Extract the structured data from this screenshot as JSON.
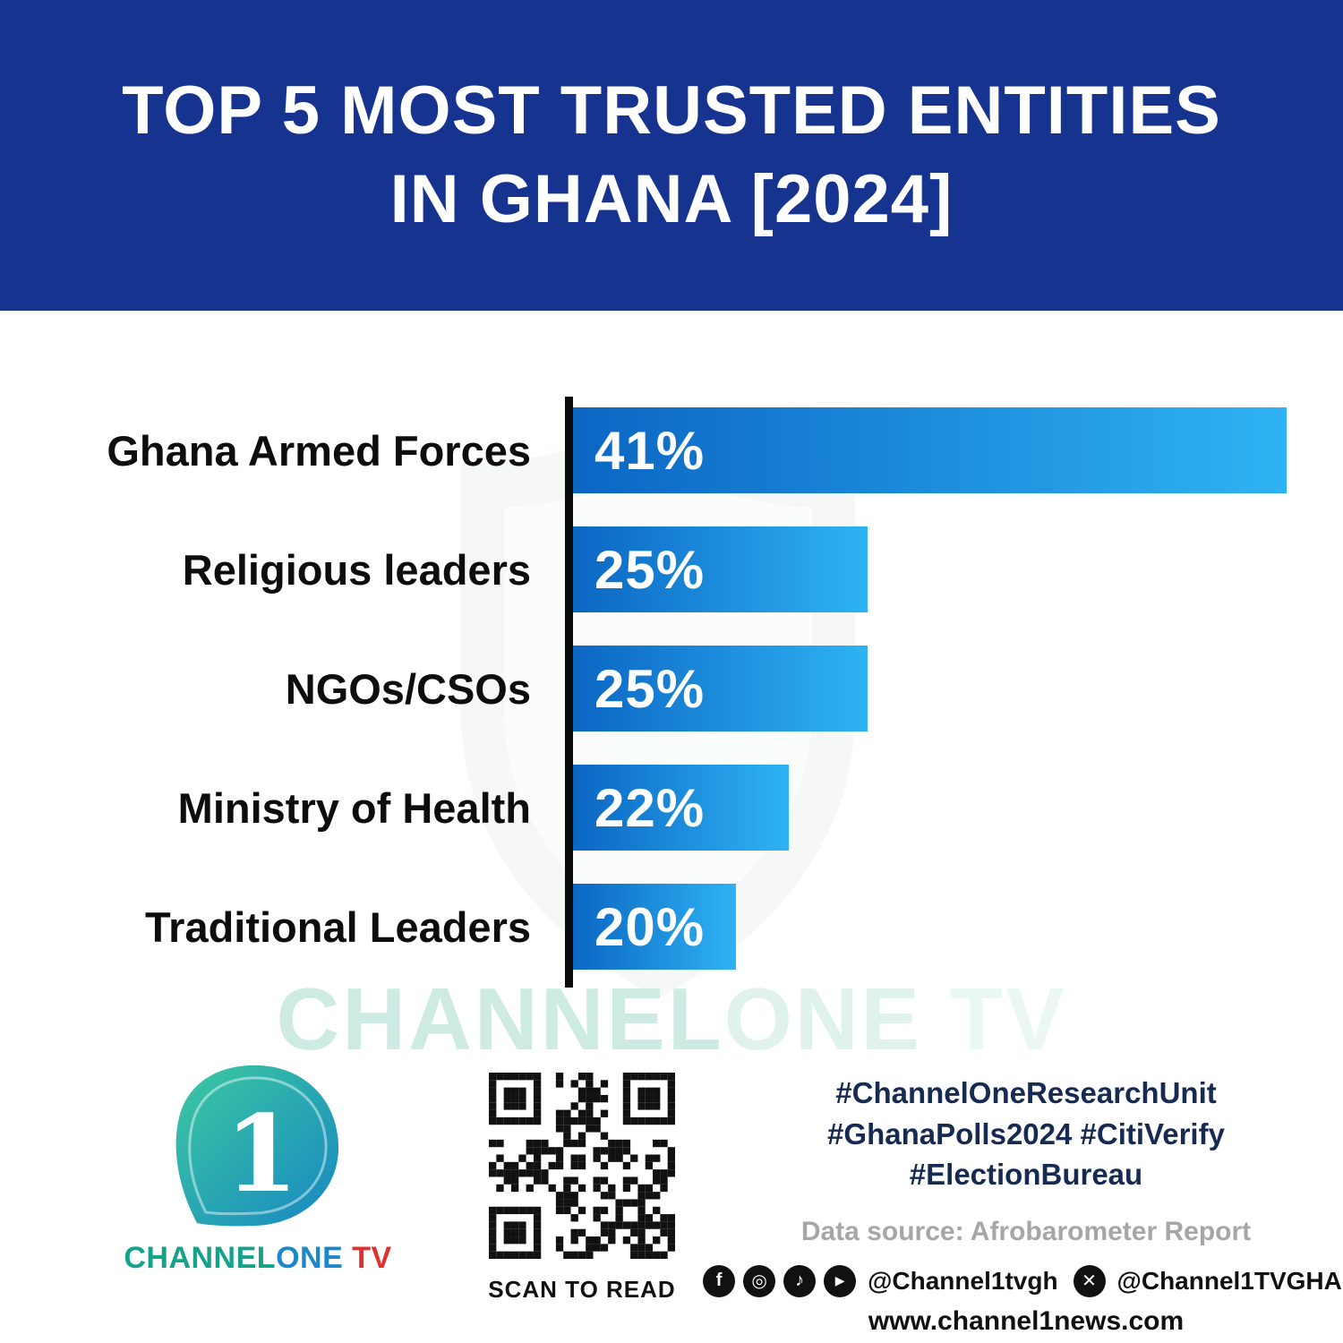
{
  "header": {
    "title_line1": "TOP 5 MOST TRUSTED ENTITIES",
    "title_line2": "IN GHANA [2024]"
  },
  "chart_data": {
    "type": "bar",
    "orientation": "horizontal",
    "title": "TOP 5 MOST TRUSTED ENTITIES IN GHANA [2024]",
    "categories": [
      "Ghana Armed Forces",
      "Religious leaders",
      "NGOs/CSOs",
      "Ministry of Health",
      "Traditional Leaders"
    ],
    "values": [
      41,
      25,
      25,
      22,
      20
    ],
    "value_labels": [
      "41%",
      "25%",
      "25%",
      "22%",
      "20%"
    ],
    "unit": "percent",
    "xlim": [
      0,
      41
    ],
    "grid": "off",
    "legend": "none",
    "axis_style": "single black vertical baseline on the left, no tick labels",
    "bar_widths_pct": [
      92.7,
      38.2,
      38.2,
      28.0,
      21.2
    ],
    "bar_color_start": "#0b66c3",
    "bar_color_end": "#2eb3f4"
  },
  "watermark": {
    "part1": "CHANNEL",
    "part2": "ONE",
    "part3": " TV"
  },
  "footer": {
    "logo": {
      "numeral": "1",
      "wordmark_channel": "CHANNEL",
      "wordmark_one": "ONE",
      "wordmark_tv": " TV"
    },
    "qr_caption": "SCAN TO READ",
    "hashtags_line1": "#ChannelOneResearchUnit",
    "hashtags_line2": "#GhanaPolls2024 #CitiVerify",
    "hashtags_line3": "#ElectionBureau",
    "data_source": "Data source: Afrobarometer Report",
    "social": {
      "icons": [
        "facebook-icon",
        "instagram-icon",
        "tiktok-icon",
        "youtube-icon",
        "x-icon"
      ],
      "handle_main": "@Channel1tvgh",
      "handle_x": "@Channel1TVGHA"
    },
    "website": "www.channel1news.com"
  },
  "colors": {
    "header_bg": "#16338f",
    "bar_gradient_start": "#0b66c3",
    "bar_gradient_end": "#2eb3f4",
    "hashtag_navy": "#172a52",
    "source_gray": "#a6a6a6",
    "logo_teal": "#14a38a",
    "logo_blue": "#1d87c9",
    "logo_red": "#e03131",
    "watermark_mint": "#cdebe3"
  }
}
